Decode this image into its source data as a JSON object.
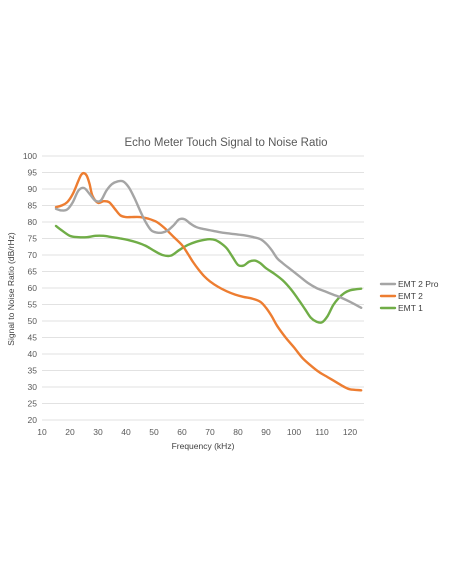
{
  "chart_data": {
    "type": "line",
    "title": "Echo Meter Touch Signal to Noise Ratio",
    "xlabel": "Frequency (kHz)",
    "ylabel": "Signal to Noise Ratio (dB/rHz)",
    "xlim": [
      10,
      125
    ],
    "ylim": [
      20,
      100
    ],
    "x_ticks": [
      10,
      20,
      30,
      40,
      50,
      60,
      70,
      80,
      90,
      100,
      110,
      120
    ],
    "y_ticks": [
      20,
      25,
      30,
      35,
      40,
      45,
      50,
      55,
      60,
      65,
      70,
      75,
      80,
      85,
      90,
      95,
      100
    ],
    "x_tick_labels": [
      "10",
      "20",
      "30",
      "40",
      "50",
      "60",
      "70",
      "80",
      "90",
      "100",
      "110",
      "120"
    ],
    "y_tick_labels": [
      "20",
      "25",
      "30",
      "35",
      "40",
      "45",
      "50",
      "55",
      "60",
      "65",
      "70",
      "75",
      "80",
      "85",
      "90",
      "95",
      "100"
    ],
    "grid": "horizontal",
    "legend_position": "right",
    "series": [
      {
        "name": "EMT 2 Pro",
        "color": "#a5a5a5",
        "x": [
          15,
          17,
          19,
          21,
          23,
          25,
          27,
          29,
          31,
          33,
          35,
          37,
          39,
          41,
          43,
          45,
          47,
          49,
          51,
          53,
          55,
          57,
          59,
          61,
          63,
          65,
          67,
          70,
          73,
          76,
          79,
          82,
          85,
          88,
          90,
          92,
          94,
          96,
          99,
          102,
          105,
          108,
          111,
          114,
          117,
          120,
          124
        ],
        "y": [
          84,
          83.5,
          83.8,
          86,
          89.5,
          90.3,
          88.5,
          86.5,
          86.5,
          89.5,
          91.5,
          92.3,
          92.3,
          90.5,
          87.3,
          83.5,
          80,
          77.5,
          76.8,
          76.8,
          77.5,
          79,
          80.8,
          80.8,
          79.5,
          78.5,
          78,
          77.5,
          77,
          76.6,
          76.3,
          76,
          75.5,
          74.8,
          73.5,
          71.5,
          69,
          67.5,
          65.5,
          63.5,
          61.5,
          60,
          59,
          58,
          57,
          55.8,
          54
        ]
      },
      {
        "name": "EMT 2",
        "color": "#ed7d31",
        "x": [
          15,
          17,
          19,
          21,
          23,
          24,
          25,
          26,
          27,
          28,
          30,
          32,
          34,
          36,
          38,
          40,
          42,
          45,
          48,
          51,
          54,
          57,
          60,
          62,
          64,
          66,
          68,
          70,
          73,
          76,
          79,
          82,
          85,
          88,
          90,
          92,
          94,
          97,
          100,
          103,
          106,
          109,
          112,
          115,
          118,
          120,
          124
        ],
        "y": [
          84.5,
          85,
          86,
          88.5,
          92.5,
          94.3,
          94.8,
          94,
          91.5,
          88,
          85.8,
          86.3,
          86,
          84,
          82,
          81.5,
          81.5,
          81.5,
          81,
          80,
          78,
          75.5,
          73,
          70.5,
          67.8,
          65.5,
          63.5,
          62,
          60.3,
          59,
          58,
          57.3,
          56.8,
          55.8,
          54,
          51.5,
          48.5,
          45,
          42,
          38.8,
          36.5,
          34.5,
          33,
          31.5,
          30,
          29.3,
          29
        ]
      },
      {
        "name": "EMT 1",
        "color": "#70ad47",
        "x": [
          15,
          17,
          20,
          23,
          26,
          29,
          32,
          35,
          38,
          41,
          44,
          47,
          50,
          53,
          56,
          59,
          62,
          65,
          68,
          70,
          72,
          74,
          76,
          78,
          80,
          82,
          84,
          86,
          88,
          90,
          93,
          96,
          99,
          102,
          104,
          106,
          108,
          110,
          112,
          114,
          116,
          118,
          120,
          122,
          124
        ],
        "y": [
          78.8,
          77.5,
          75.8,
          75.4,
          75.4,
          75.8,
          75.8,
          75.4,
          75,
          74.5,
          73.8,
          72.8,
          71.3,
          70,
          69.8,
          71.5,
          73,
          74,
          74.6,
          74.8,
          74.5,
          73.5,
          72,
          69.5,
          67,
          66.8,
          68,
          68.3,
          67.5,
          66,
          64.3,
          62.3,
          59.5,
          56,
          53.5,
          51,
          49.8,
          49.6,
          51.5,
          54.8,
          57,
          58.5,
          59.3,
          59.6,
          59.8
        ]
      }
    ]
  }
}
